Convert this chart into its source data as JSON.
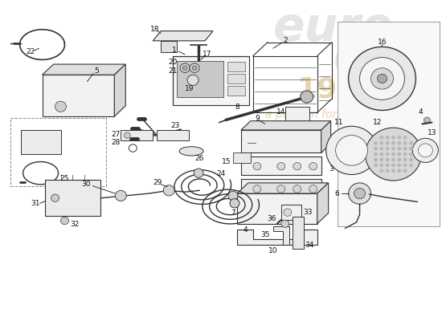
{
  "background_color": "#ffffff",
  "line_color": "#333333",
  "label_color": "#111111",
  "watermark_euro_color": "#c8c8c8",
  "watermark_year_color": "#c8a050",
  "watermark_passion_color": "#c8a050",
  "fig_width": 5.5,
  "fig_height": 4.0,
  "dpi": 100
}
